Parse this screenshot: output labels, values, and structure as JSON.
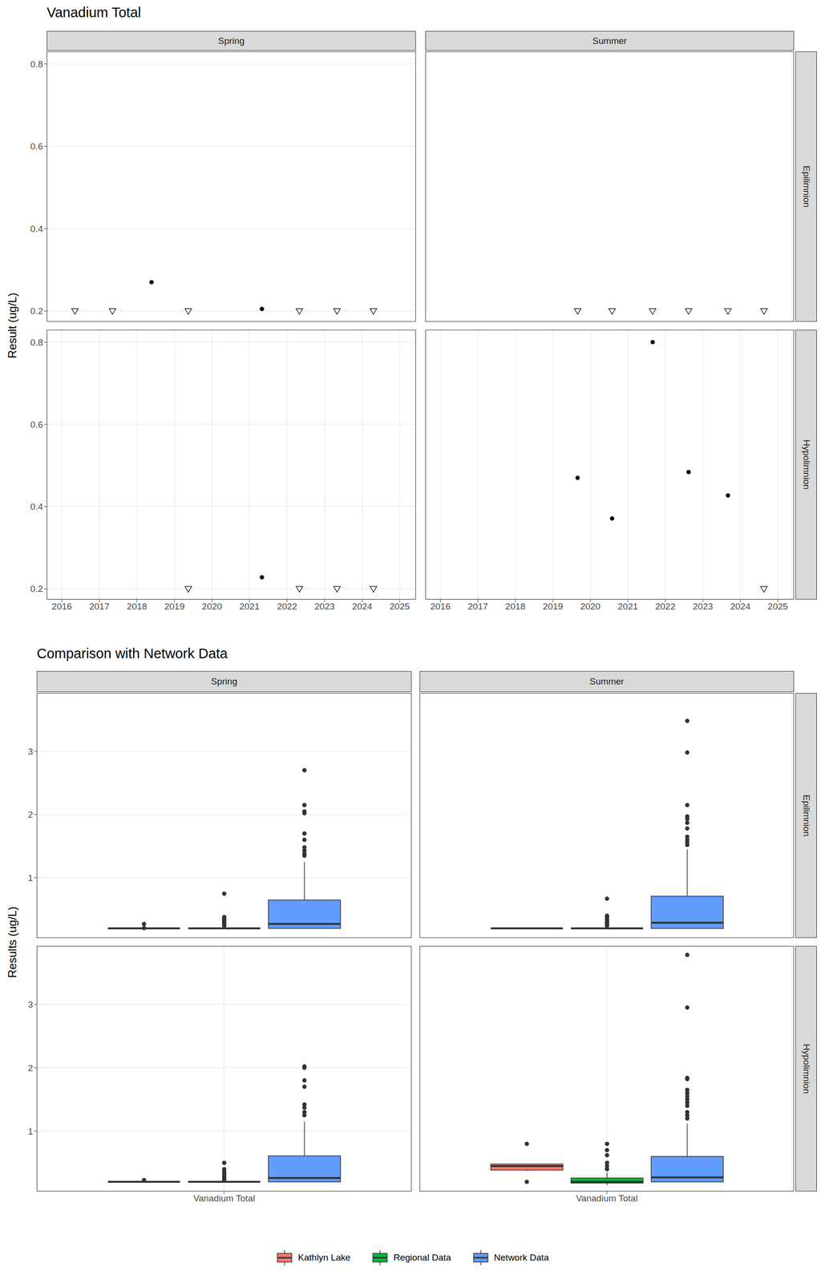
{
  "chart_data": [
    {
      "type": "scatter",
      "title": "Vanadium Total",
      "y_label": "Result (ug/L)",
      "columns": [
        "Spring",
        "Summer"
      ],
      "rows": [
        "Epilimnion",
        "Hypolimnion"
      ],
      "xlim": [
        2015.6,
        2025.43
      ],
      "xticks": [
        2016,
        2017,
        2018,
        2019,
        2020,
        2021,
        2022,
        2023,
        2024,
        2025
      ],
      "ylim": [
        0.174,
        0.83
      ],
      "yticks": [
        0.2,
        0.4,
        0.6,
        0.8
      ],
      "grid": true,
      "panels": [
        {
          "column": "Spring",
          "row": "Epilimnion",
          "series": [
            {
              "marker": "circle",
              "color": "#000000",
              "x": [
                2018.39,
                2021.33
              ],
              "values": [
                0.27,
                0.205
              ]
            },
            {
              "marker": "triangle-down",
              "color": "#000000",
              "x": [
                2016.35,
                2017.35,
                2019.37,
                2022.33,
                2023.33,
                2024.3
              ],
              "values": [
                0.2,
                0.2,
                0.2,
                0.2,
                0.2,
                0.2
              ]
            }
          ]
        },
        {
          "column": "Summer",
          "row": "Epilimnion",
          "series": [
            {
              "marker": "triangle-down",
              "color": "#000000",
              "x": [
                2019.66,
                2020.58,
                2021.66,
                2022.62,
                2023.67,
                2024.63
              ],
              "values": [
                0.2,
                0.2,
                0.2,
                0.2,
                0.2,
                0.2
              ]
            }
          ]
        },
        {
          "column": "Spring",
          "row": "Hypolimnion",
          "series": [
            {
              "marker": "circle",
              "color": "#000000",
              "x": [
                2021.33
              ],
              "values": [
                0.228
              ]
            },
            {
              "marker": "triangle-down",
              "color": "#000000",
              "x": [
                2019.37,
                2022.33,
                2023.33,
                2024.3
              ],
              "values": [
                0.2,
                0.2,
                0.2,
                0.2
              ]
            }
          ]
        },
        {
          "column": "Summer",
          "row": "Hypolimnion",
          "series": [
            {
              "marker": "circle",
              "color": "#000000",
              "x": [
                2019.66,
                2020.58,
                2021.66,
                2022.62,
                2023.67
              ],
              "values": [
                0.47,
                0.371,
                0.8,
                0.484,
                0.427
              ]
            },
            {
              "marker": "triangle-down",
              "color": "#000000",
              "x": [
                2024.63
              ],
              "values": [
                0.2
              ]
            }
          ]
        }
      ]
    },
    {
      "type": "boxplot",
      "title": "Comparison with Network Data",
      "y_label": "Results (ug/L)",
      "columns": [
        "Spring",
        "Summer"
      ],
      "rows": [
        "Epilimnion",
        "Hypolimnion"
      ],
      "categories": [
        "Vanadium Total"
      ],
      "ylim": [
        0.05,
        3.92
      ],
      "yticks": [
        1,
        2,
        3
      ],
      "grid": true,
      "legend": "bottom",
      "series": [
        {
          "name": "Kathlyn Lake",
          "color": "#F8766D"
        },
        {
          "name": "Regional Data",
          "color": "#00BA38"
        },
        {
          "name": "Network Data",
          "color": "#619CFF"
        }
      ],
      "panels": [
        {
          "column": "Spring",
          "row": "Epilimnion",
          "boxes": [
            {
              "whisker_low": 0.2,
              "q1": 0.2,
              "median": 0.2,
              "q3": 0.2,
              "whisker_high": 0.2,
              "outliers": [
                0.205,
                0.27
              ]
            },
            {
              "whisker_low": 0.2,
              "q1": 0.2,
              "median": 0.2,
              "q3": 0.2,
              "whisker_high": 0.2,
              "outliers": [
                0.24,
                0.26,
                0.28,
                0.3,
                0.32,
                0.34,
                0.36,
                0.38,
                0.75
              ]
            },
            {
              "whisker_low": 0.2,
              "q1": 0.2,
              "median": 0.27,
              "q3": 0.65,
              "whisker_high": 1.25,
              "outliers": [
                1.35,
                1.38,
                1.43,
                1.48,
                1.6,
                1.7,
                2.02,
                2.05,
                2.15,
                2.7
              ]
            }
          ]
        },
        {
          "column": "Summer",
          "row": "Epilimnion",
          "boxes": [
            {
              "whisker_low": 0.2,
              "q1": 0.2,
              "median": 0.2,
              "q3": 0.2,
              "whisker_high": 0.2,
              "outliers": []
            },
            {
              "whisker_low": 0.2,
              "q1": 0.2,
              "median": 0.2,
              "q3": 0.2,
              "whisker_high": 0.2,
              "outliers": [
                0.24,
                0.26,
                0.28,
                0.3,
                0.32,
                0.35,
                0.38,
                0.4,
                0.67
              ]
            },
            {
              "whisker_low": 0.2,
              "q1": 0.2,
              "median": 0.29,
              "q3": 0.71,
              "whisker_high": 1.45,
              "outliers": [
                1.52,
                1.56,
                1.6,
                1.65,
                1.78,
                1.87,
                1.93,
                1.97,
                2.15,
                2.98,
                3.48
              ]
            }
          ]
        },
        {
          "column": "Spring",
          "row": "Hypolimnion",
          "boxes": [
            {
              "whisker_low": 0.2,
              "q1": 0.2,
              "median": 0.2,
              "q3": 0.2,
              "whisker_high": 0.2,
              "outliers": [
                0.228
              ]
            },
            {
              "whisker_low": 0.2,
              "q1": 0.2,
              "median": 0.2,
              "q3": 0.2,
              "whisker_high": 0.2,
              "outliers": [
                0.23,
                0.25,
                0.27,
                0.3,
                0.33,
                0.36,
                0.4,
                0.5
              ]
            },
            {
              "whisker_low": 0.2,
              "q1": 0.2,
              "median": 0.26,
              "q3": 0.61,
              "whisker_high": 1.15,
              "outliers": [
                1.25,
                1.3,
                1.37,
                1.42,
                1.7,
                1.8,
                2.0,
                2.02
              ]
            }
          ]
        },
        {
          "column": "Summer",
          "row": "Hypolimnion",
          "boxes": [
            {
              "whisker_low": 0.371,
              "q1": 0.385,
              "median": 0.449,
              "q3": 0.48,
              "whisker_high": 0.484,
              "outliers": [
                0.2,
                0.8
              ]
            },
            {
              "whisker_low": 0.15,
              "q1": 0.18,
              "median": 0.2,
              "q3": 0.26,
              "whisker_high": 0.35,
              "outliers": [
                0.4,
                0.45,
                0.5,
                0.62,
                0.7,
                0.8
              ]
            },
            {
              "whisker_low": 0.2,
              "q1": 0.2,
              "median": 0.27,
              "q3": 0.6,
              "whisker_high": 1.12,
              "outliers": [
                1.2,
                1.25,
                1.3,
                1.4,
                1.45,
                1.5,
                1.55,
                1.6,
                1.65,
                1.82,
                1.84,
                2.95,
                3.78
              ]
            }
          ]
        }
      ]
    }
  ]
}
